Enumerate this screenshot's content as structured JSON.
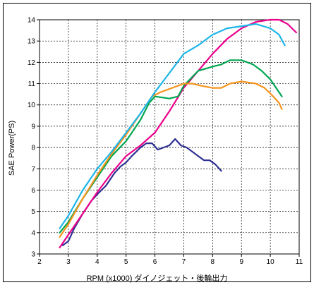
{
  "chart_data": {
    "type": "line",
    "xlabel": "RPM (x1000) ダイノジェット・後輪出力",
    "ylabel": "SAE Power(PS)",
    "xlim": [
      2,
      11
    ],
    "ylim": [
      3,
      14
    ],
    "xticks": [
      2,
      3,
      4,
      5,
      6,
      7,
      8,
      9,
      10,
      11
    ],
    "yticks": [
      3,
      4,
      5,
      6,
      7,
      8,
      9,
      10,
      11,
      12,
      13,
      14
    ],
    "grid": true,
    "series": [
      {
        "color": "#2e3192",
        "x": [
          2.8,
          3.0,
          3.2,
          3.5,
          3.8,
          4.0,
          4.3,
          4.6,
          4.8,
          5.0,
          5.2,
          5.5,
          5.7,
          5.9,
          6.1,
          6.3,
          6.5,
          6.7,
          6.9,
          7.1,
          7.3,
          7.5,
          7.7,
          7.9,
          8.1,
          8.3
        ],
        "y": [
          3.4,
          3.6,
          4.2,
          4.9,
          5.5,
          5.8,
          6.2,
          6.8,
          7.1,
          7.3,
          7.6,
          8.0,
          8.2,
          8.2,
          7.9,
          8.0,
          8.1,
          8.4,
          8.1,
          8.0,
          7.8,
          7.6,
          7.4,
          7.4,
          7.2,
          6.9
        ]
      },
      {
        "color": "#ec008c",
        "x": [
          2.7,
          3.0,
          3.5,
          4.0,
          4.5,
          5.0,
          5.5,
          6.0,
          6.5,
          7.0,
          7.5,
          8.0,
          8.5,
          9.0,
          9.5,
          10.0,
          10.3,
          10.6,
          10.9
        ],
        "y": [
          3.3,
          3.9,
          4.9,
          5.9,
          6.8,
          7.6,
          8.1,
          8.7,
          9.7,
          10.8,
          11.6,
          12.4,
          13.1,
          13.6,
          13.9,
          14.0,
          14.0,
          13.8,
          13.4
        ]
      },
      {
        "color": "#00a651",
        "x": [
          2.7,
          3.0,
          3.5,
          4.0,
          4.5,
          5.0,
          5.5,
          5.8,
          6.0,
          6.5,
          6.8,
          7.0,
          7.5,
          8.0,
          8.3,
          8.6,
          9.0,
          9.4,
          9.7,
          10.0,
          10.2,
          10.4
        ],
        "y": [
          4.0,
          4.5,
          5.6,
          6.6,
          7.6,
          8.3,
          9.3,
          10.1,
          10.4,
          10.3,
          10.4,
          10.9,
          11.6,
          11.8,
          11.9,
          12.1,
          12.1,
          11.9,
          11.6,
          11.2,
          10.8,
          10.4
        ]
      },
      {
        "color": "#f7941d",
        "x": [
          2.7,
          3.0,
          3.5,
          4.0,
          4.5,
          5.0,
          5.5,
          5.9,
          6.2,
          6.6,
          7.0,
          7.3,
          7.6,
          8.0,
          8.3,
          8.6,
          9.0,
          9.5,
          9.8,
          10.1,
          10.3,
          10.4
        ],
        "y": [
          3.8,
          4.4,
          5.6,
          6.7,
          7.7,
          8.6,
          9.6,
          10.4,
          10.6,
          10.8,
          11.0,
          11.0,
          10.9,
          10.8,
          10.8,
          11.0,
          11.1,
          11.0,
          10.8,
          10.4,
          10.1,
          9.8
        ]
      },
      {
        "color": "#1cb5e8",
        "x": [
          2.7,
          3.0,
          3.5,
          4.0,
          4.5,
          5.0,
          5.5,
          6.0,
          6.5,
          7.0,
          7.5,
          8.0,
          8.5,
          9.0,
          9.5,
          10.0,
          10.3,
          10.5
        ],
        "y": [
          4.2,
          4.8,
          6.0,
          7.0,
          7.8,
          8.7,
          9.6,
          10.6,
          11.5,
          12.4,
          12.8,
          13.3,
          13.6,
          13.7,
          13.8,
          13.6,
          13.3,
          12.8
        ]
      }
    ]
  }
}
